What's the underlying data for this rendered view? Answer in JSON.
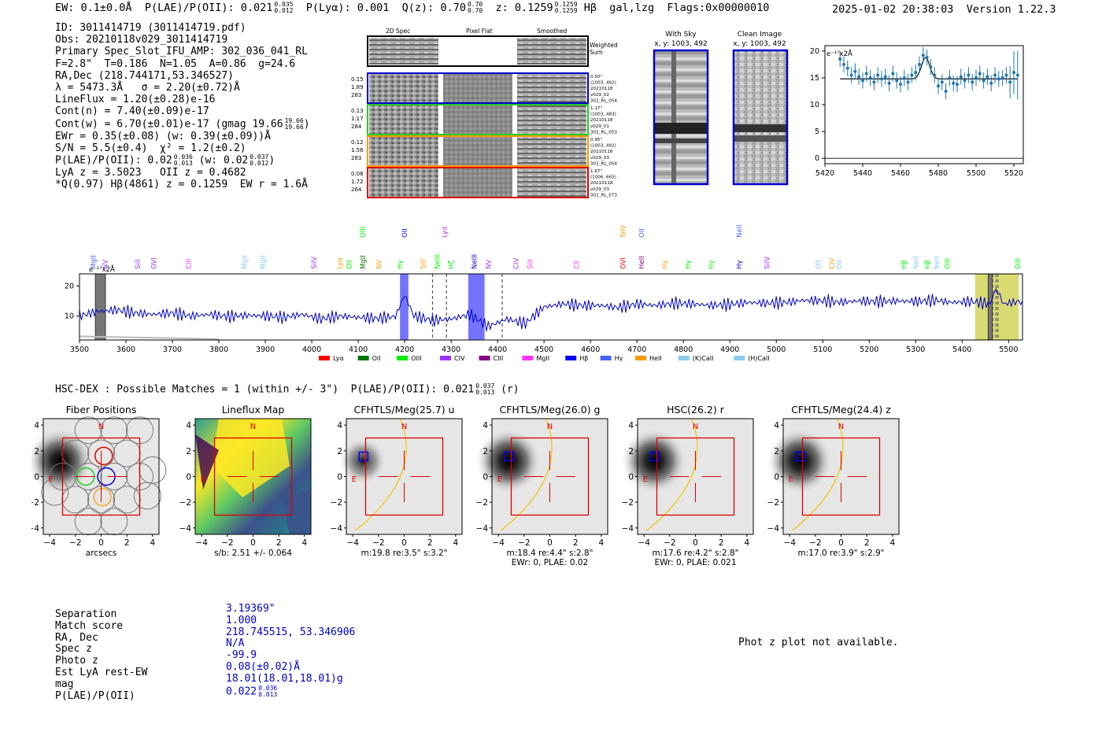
{
  "header": {
    "ew": "EW: 0.1±0.0Å",
    "plae_label": "P(LAE)/P(OII): 0.021",
    "plae_hi": "0.035",
    "plae_lo": "0.012",
    "plya": "P(Lyα): 0.001",
    "qz_label": "Q(z): 0.70",
    "qz_hi": "0.70",
    "qz_lo": "0.70",
    "z_label": "z: 0.1259",
    "z_hi": "0.1259",
    "z_lo": "0.1259",
    "line_tag": "Hβ  gal,lzg",
    "flags": "Flags:0x00000010",
    "datetime": "2025-01-02 20:38:03",
    "version": "Version 1.22.3"
  },
  "info": {
    "id": "ID: 3011414719 (3011414719.pdf)",
    "obs": "Obs: 20210118v029_3011414719",
    "primary": "Primary Spec_Slot_IFU_AMP: 302_036_041_RL",
    "fit": "F=2.8\"  T=0.186  N=1.05  A=0.86  g=24.6",
    "radec": "RA,Dec (218.744171,53.346527)",
    "lambda": "λ = 5473.3Å   σ = 2.20(±0.72)Å",
    "lineflux": "LineFlux = 1.20(±0.28)e-16",
    "contn": "Cont(n) = 7.40(±0.09)e-17",
    "contw": "Cont(w) = 6.70(±0.01)e-17 (gmag 19.66",
    "contw_hi": "19.66",
    "contw_lo": "19.66",
    "ewr": "EWr = 0.35(±0.08) (w: 0.39(±0.09))Å",
    "sn": "S/N = 5.5(±0.4)  χ² = 1.2(±0.2)",
    "plae_a": "P(LAE)/P(OII): 0.02",
    "plae_a_hi": "0.036",
    "plae_a_lo": "0.013",
    "plae_b": "(w: 0.02",
    "plae_b_hi": "0.037",
    "plae_b_lo": "0.012",
    "lya_z": "LyA z = 3.5023   OII z = 0.4682",
    "hb": "*Q(0.97) Hβ(4861) z = 0.1259  EW r = 1.6Å"
  },
  "spec2d": {
    "col_titles": [
      "2D Spec",
      "Pixel Flat",
      "Smoothed"
    ],
    "weighted_label": "Weighted\nSum",
    "rows": [
      {
        "left": [
          "0.15",
          "1.89",
          "283"
        ],
        "right": [
          "0.50\"",
          "(1003, 492)",
          "20210118",
          "v029_02",
          "302_RL_054"
        ],
        "color": "#0000cc"
      },
      {
        "left": [
          "0.13",
          "1.17",
          "284"
        ],
        "right": [
          "1.17\"",
          "(1003, 483)",
          "20210118",
          "v029_01",
          "302_RL_053"
        ],
        "color": "#22cc22"
      },
      {
        "left": [
          "0.12",
          "1.56",
          "283"
        ],
        "right": [
          "0.95\"",
          "(1003, 492)",
          "20210118",
          "v029_03",
          "302_RL_054"
        ],
        "color": "#ff9900"
      },
      {
        "left": [
          "0.08",
          "1.72",
          "264"
        ],
        "right": [
          "1.67\"",
          "(1006, 665)",
          "20210118",
          "v029_03",
          "302_RL_073"
        ],
        "color": "#dd0000"
      }
    ]
  },
  "cutouts": {
    "with_sky": "With Sky",
    "with_sky_xy": "x, y: 1003, 492",
    "clean": "Clean Image",
    "clean_xy": "x, y: 1003, 492"
  },
  "chart_data": [
    {
      "type": "line",
      "ylabel": "e⁻¹⁷x2Å",
      "xlim": [
        5420,
        5525
      ],
      "ylim": [
        -1,
        21
      ],
      "x_ticks": [
        5420,
        5440,
        5460,
        5480,
        5500,
        5520
      ],
      "y_ticks": [
        0,
        5,
        10,
        15,
        20
      ],
      "points_x": [
        5428,
        5430,
        5432,
        5434,
        5436,
        5438,
        5440,
        5442,
        5444,
        5446,
        5448,
        5450,
        5452,
        5454,
        5456,
        5458,
        5460,
        5462,
        5464,
        5466,
        5468,
        5470,
        5472,
        5474,
        5476,
        5478,
        5480,
        5482,
        5484,
        5486,
        5488,
        5490,
        5492,
        5494,
        5496,
        5498,
        5500,
        5502,
        5504,
        5506,
        5508,
        5510,
        5512,
        5514,
        5516,
        5518,
        5520,
        5522
      ],
      "points_y": [
        18.5,
        17.5,
        16.8,
        15.5,
        16.2,
        15.2,
        14.5,
        15.8,
        15.0,
        14.2,
        15.5,
        14.8,
        15.2,
        14.0,
        15.8,
        14.5,
        13.8,
        15.0,
        14.2,
        15.5,
        16.0,
        17.5,
        19.2,
        18.8,
        17.0,
        15.5,
        13.5,
        14.2,
        12.5,
        15.0,
        14.0,
        13.8,
        15.2,
        14.5,
        15.5,
        14.2,
        15.0,
        15.8,
        14.5,
        15.2,
        14.0,
        15.5,
        14.8,
        15.0,
        15.5,
        14.2,
        16.0,
        15.5
      ],
      "errors": [
        1.5,
        1.5,
        1.5,
        1.5,
        1.5,
        1.5,
        1.5,
        1.5,
        1.5,
        1.5,
        1.5,
        1.5,
        1.5,
        1.5,
        1.5,
        1.5,
        1.5,
        1.5,
        1.5,
        1.5,
        1.5,
        1.5,
        1.5,
        1.5,
        1.5,
        1.5,
        1.5,
        1.5,
        1.5,
        1.5,
        1.5,
        1.5,
        1.5,
        1.5,
        1.5,
        1.5,
        1.5,
        1.5,
        1.5,
        1.5,
        1.5,
        1.5,
        1.5,
        1.5,
        1.5,
        3.0,
        4.0,
        4.5
      ],
      "fit_baseline": 14.8,
      "fit_center": 5473.3,
      "fit_sigma": 2.2,
      "fit_amp": 4.0
    },
    {
      "type": "line",
      "ylabel": "e⁻¹⁷x2Å",
      "xlim": [
        3500,
        5530
      ],
      "ylim": [
        2,
        24
      ],
      "x_ticks": [
        3500,
        3600,
        3700,
        3800,
        3900,
        4000,
        4100,
        4200,
        4300,
        4400,
        4500,
        4600,
        4700,
        4800,
        4900,
        5000,
        5100,
        5200,
        5300,
        5400,
        5500
      ],
      "y_ticks": [
        10,
        20
      ],
      "x": [
        3500,
        3540,
        3580,
        3620,
        3660,
        3700,
        3740,
        3780,
        3820,
        3860,
        3900,
        3940,
        3980,
        4020,
        4060,
        4100,
        4140,
        4180,
        4200,
        4220,
        4260,
        4300,
        4340,
        4380,
        4420,
        4460,
        4500,
        4540,
        4580,
        4620,
        4660,
        4700,
        4740,
        4780,
        4820,
        4860,
        4900,
        4940,
        4980,
        5020,
        5060,
        5100,
        5140,
        5180,
        5220,
        5260,
        5300,
        5340,
        5380,
        5420,
        5460,
        5473,
        5490,
        5530
      ],
      "y": [
        10,
        11.5,
        12,
        11,
        10.5,
        11,
        10,
        10.5,
        9.8,
        10.2,
        10,
        9.5,
        10.5,
        9,
        10,
        9.5,
        9.2,
        9.8,
        17,
        10,
        8.5,
        9,
        10.5,
        6.5,
        9,
        7.5,
        13,
        14,
        13.5,
        13.5,
        12.8,
        14,
        13.5,
        14.2,
        14,
        13.5,
        13.8,
        14.5,
        14.2,
        14.5,
        15.2,
        15,
        14.6,
        15,
        14.8,
        15,
        14.8,
        15.2,
        14.5,
        14.8,
        14,
        19,
        14,
        15
      ],
      "bands": [
        {
          "x0": 4190,
          "x1": 4208,
          "color": "#0000ff"
        },
        {
          "x0": 4337,
          "x1": 4372,
          "color": "#0000ff"
        },
        {
          "x0": 5428,
          "x1": 5522,
          "color": "#bbbb00"
        }
      ],
      "gray_bands": [
        {
          "x0": 3534,
          "x1": 3556
        },
        {
          "x0": 5456,
          "x1": 5465
        }
      ],
      "dashed_lines": [
        4260,
        4290,
        4410,
        5466,
        5473,
        5477
      ],
      "legend": [
        "Lyα",
        "OII",
        "OIII",
        "CIV",
        "CIII",
        "MgII",
        "Hβ",
        "Hγ",
        "HeII",
        "(K)CaII",
        "(H)CaII"
      ],
      "legend_colors": [
        "#ff0000",
        "#007700",
        "#00ee00",
        "#9933ff",
        "#880088",
        "#ff33ff",
        "#0000ff",
        "#4466ff",
        "#ff9900",
        "#88ccee",
        "#88ccee"
      ],
      "line_labels": [
        {
          "text": "MgII",
          "x": 3530,
          "row": "low",
          "color": "#4466ff"
        },
        {
          "text": "NV",
          "x": 3555,
          "row": "low",
          "color": "#9933ff"
        },
        {
          "text": "SiII",
          "x": 3625,
          "row": "low",
          "color": "#9933ff"
        },
        {
          "text": "OVI",
          "x": 3660,
          "row": "low",
          "color": "#9933ff"
        },
        {
          "text": "CIII",
          "x": 3735,
          "row": "low",
          "color": "#ff33ff"
        },
        {
          "text": "MgII",
          "x": 3855,
          "row": "low",
          "color": "#88ccee"
        },
        {
          "text": "MgII",
          "x": 3895,
          "row": "low",
          "color": "#88ccee"
        },
        {
          "text": "SiIV",
          "x": 4005,
          "row": "low",
          "color": "#9933ff"
        },
        {
          "text": "Lyα",
          "x": 4060,
          "row": "low",
          "color": "#ff9900"
        },
        {
          "text": "OII",
          "x": 4080,
          "row": "low",
          "color": "#00ee00"
        },
        {
          "text": "MgII",
          "x": 4110,
          "row": "low",
          "color": "#007700"
        },
        {
          "text": "NV",
          "x": 4145,
          "row": "low",
          "color": "#ff9900"
        },
        {
          "text": "Hγ",
          "x": 4190,
          "row": "low",
          "color": "#00ee00"
        },
        {
          "text": "OIII",
          "x": 4110,
          "row": "high",
          "color": "#00ee00"
        },
        {
          "text": "OII",
          "x": 4200,
          "row": "high",
          "color": "#0000cc"
        },
        {
          "text": "SiII",
          "x": 4240,
          "row": "low",
          "color": "#ff9900"
        },
        {
          "text": "NeIII",
          "x": 4270,
          "row": "low",
          "color": "#00ee00"
        },
        {
          "text": "Lyα",
          "x": 4285,
          "row": "high",
          "color": "#9933ff"
        },
        {
          "text": "Hζ",
          "x": 4300,
          "row": "low",
          "color": "#00ee00"
        },
        {
          "text": "NeIII",
          "x": 4350,
          "row": "low",
          "color": "#0000cc"
        },
        {
          "text": "NV",
          "x": 4380,
          "row": "low",
          "color": "#9933ff"
        },
        {
          "text": "CIV",
          "x": 4440,
          "row": "low",
          "color": "#9933ff"
        },
        {
          "text": "SiII",
          "x": 4470,
          "row": "low",
          "color": "#ff33ff"
        },
        {
          "text": "CII",
          "x": 4570,
          "row": "low",
          "color": "#ff33ff"
        },
        {
          "text": "OVI",
          "x": 4670,
          "row": "low",
          "color": "#ff0000"
        },
        {
          "text": "SiIV",
          "x": 4670,
          "row": "high",
          "color": "#ff9900"
        },
        {
          "text": "OII",
          "x": 4710,
          "row": "high",
          "color": "#4466ff"
        },
        {
          "text": "HeII",
          "x": 4710,
          "row": "low",
          "color": "#880088"
        },
        {
          "text": "Hγ",
          "x": 4760,
          "row": "low",
          "color": "#ff9900"
        },
        {
          "text": "Hγ",
          "x": 4810,
          "row": "low",
          "color": "#00ee00"
        },
        {
          "text": "Hγ",
          "x": 4860,
          "row": "low",
          "color": "#00ee00"
        },
        {
          "text": "NeII",
          "x": 4920,
          "row": "high",
          "color": "#4466ff"
        },
        {
          "text": "Hγ",
          "x": 4920,
          "row": "low",
          "color": "#0000cc"
        },
        {
          "text": "SiIV",
          "x": 4980,
          "row": "low",
          "color": "#9933ff"
        },
        {
          "text": "OII",
          "x": 5090,
          "row": "low",
          "color": "#88ccee"
        },
        {
          "text": "CIV",
          "x": 5120,
          "row": "low",
          "color": "#ff9900"
        },
        {
          "text": "OII",
          "x": 5135,
          "row": "low",
          "color": "#88ccee"
        },
        {
          "text": "Hβ",
          "x": 5275,
          "row": "low",
          "color": "#00ee00"
        },
        {
          "text": "NeII",
          "x": 5300,
          "row": "low",
          "color": "#88ccee"
        },
        {
          "text": "Hβ",
          "x": 5325,
          "row": "low",
          "color": "#00ee00"
        },
        {
          "text": "NeII",
          "x": 5345,
          "row": "low",
          "color": "#88ccee"
        },
        {
          "text": "OIII",
          "x": 5368,
          "row": "low",
          "color": "#00ee00"
        },
        {
          "text": "OIII",
          "x": 5520,
          "row": "low",
          "color": "#00ee00"
        }
      ]
    }
  ],
  "hsc": {
    "label": "HSC-DEX : Possible Matches = 1 (within +/- 3\")  P(LAE)/P(OII): 0.021",
    "hi": "0.037",
    "lo": "0.013",
    "suffix": "(r)"
  },
  "panels": [
    {
      "title": "Fiber Positions",
      "caption": "arcsecs",
      "caption2": "",
      "type": "fiber"
    },
    {
      "title": "Lineflux Map",
      "caption": "s/b: 2.51 +/- 0.064",
      "caption2": "",
      "type": "lineflux"
    },
    {
      "title": "CFHTLS/Meg(25.7) u",
      "caption": "m:19.8  re:3.5\"  s:3.2\"",
      "caption2": "",
      "type": "img",
      "faint": true
    },
    {
      "title": "CFHTLS/Meg(26.0) g",
      "caption": "m:18.4  re:4.4\"  s:2.8\"",
      "caption2": "EWr: 0, PLAE: 0.02",
      "type": "img",
      "faint": false
    },
    {
      "title": "HSC(26.2) r",
      "caption": "m:17.6  re:4.2\"  s:2.8\"",
      "caption2": "EWr: 0, PLAE: 0.021",
      "type": "img",
      "faint": false
    },
    {
      "title": "CFHTLS/Meg(24.4) z",
      "caption": "m:17.0  re:3.9\"  s:2.9\"",
      "caption2": "",
      "type": "img",
      "faint": false
    }
  ],
  "panel_axis": {
    "ticks": [
      "−4",
      "−2",
      "0",
      "2",
      "4"
    ],
    "north": "N",
    "east": "E"
  },
  "matches": {
    "labels": [
      "Separation",
      "Match score",
      "RA, Dec",
      "Spec z",
      "Photo z",
      "Est LyA rest-EW",
      "mag",
      "P(LAE)/P(OII)"
    ],
    "values": [
      "3.19369\"",
      "1.000",
      "218.745515, 53.346906",
      "N/A",
      "-99.9",
      "0.08(±0.02)Å",
      "18.01(18.01,18.01)g",
      "0.022"
    ],
    "plae_hi": "0.036",
    "plae_lo": "0.013"
  },
  "photz_note": "Phot z plot not available."
}
